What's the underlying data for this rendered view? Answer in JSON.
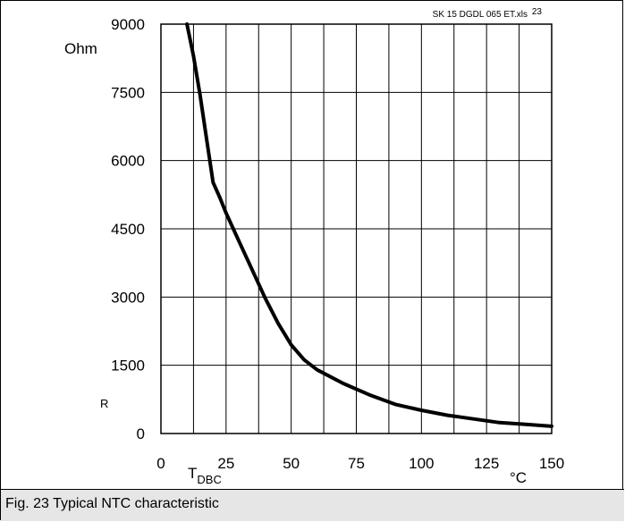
{
  "chart_data": {
    "type": "line",
    "file_label": "SK 15 DGDL 065 ET.xls",
    "fig_number": "23",
    "y_unit": "Ohm",
    "y_symbol": "R",
    "x_symbol": "T",
    "x_symbol_sub": "DBC",
    "x_unit": "°C",
    "xlim": [
      0,
      150
    ],
    "ylim": [
      0,
      9000
    ],
    "x_ticks": [
      0,
      25,
      50,
      75,
      100,
      125,
      150
    ],
    "y_ticks": [
      0,
      1500,
      3000,
      4500,
      6000,
      7500,
      9000
    ],
    "x_grid_step": 12.5,
    "series": [
      {
        "x": [
          10,
          12.5,
          15,
          17.5,
          20,
          22.5,
          25,
          30,
          35,
          40,
          45,
          50,
          55,
          60,
          70,
          80,
          90,
          100,
          110,
          120,
          130,
          140,
          150
        ],
        "y": [
          9000,
          8300,
          7450,
          6480,
          5520,
          5200,
          4850,
          4220,
          3600,
          2980,
          2420,
          1950,
          1620,
          1400,
          1100,
          850,
          640,
          510,
          400,
          320,
          240,
          200,
          160
        ]
      }
    ]
  },
  "caption": "Fig. 23 Typical NTC characteristic"
}
